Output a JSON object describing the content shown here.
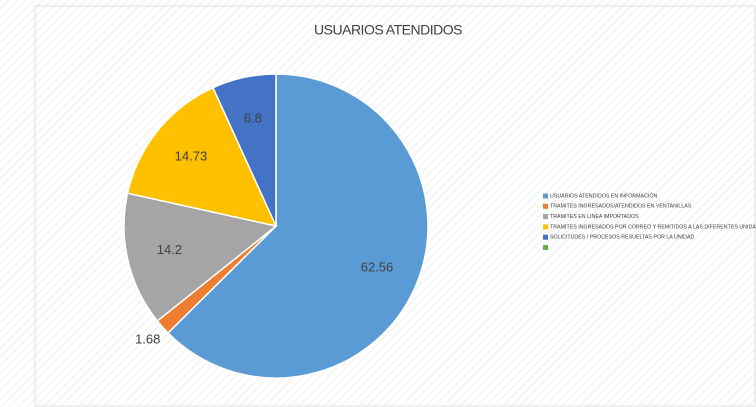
{
  "chart_data": {
    "type": "pie",
    "title": "USUARIOS ATENDIDOS",
    "categories": [
      "USUARIOS ATENDIDOS EN INFORMACIÓN",
      "TRAMITES INGRESADOS/ATENDIDOS EN VENTANILLAS",
      "TRAMITES EN LINEA IMPORTADOS",
      "TRAMITES INGRESADOS POR CORREO Y REMITIDOS A LAS DIFERENTES UNIDAD",
      "SOLICITUDES / PROCESOS RESUELTAS POR LA UNIDAD",
      null
    ],
    "values": [
      62.56,
      1.68,
      14.2,
      14.73,
      6.8,
      null
    ],
    "colors": [
      "#5b9bd5",
      "#ed7d31",
      "#a5a5a5",
      "#ffc000",
      "#4472c4",
      "#70ad47"
    ],
    "legend": "right"
  }
}
